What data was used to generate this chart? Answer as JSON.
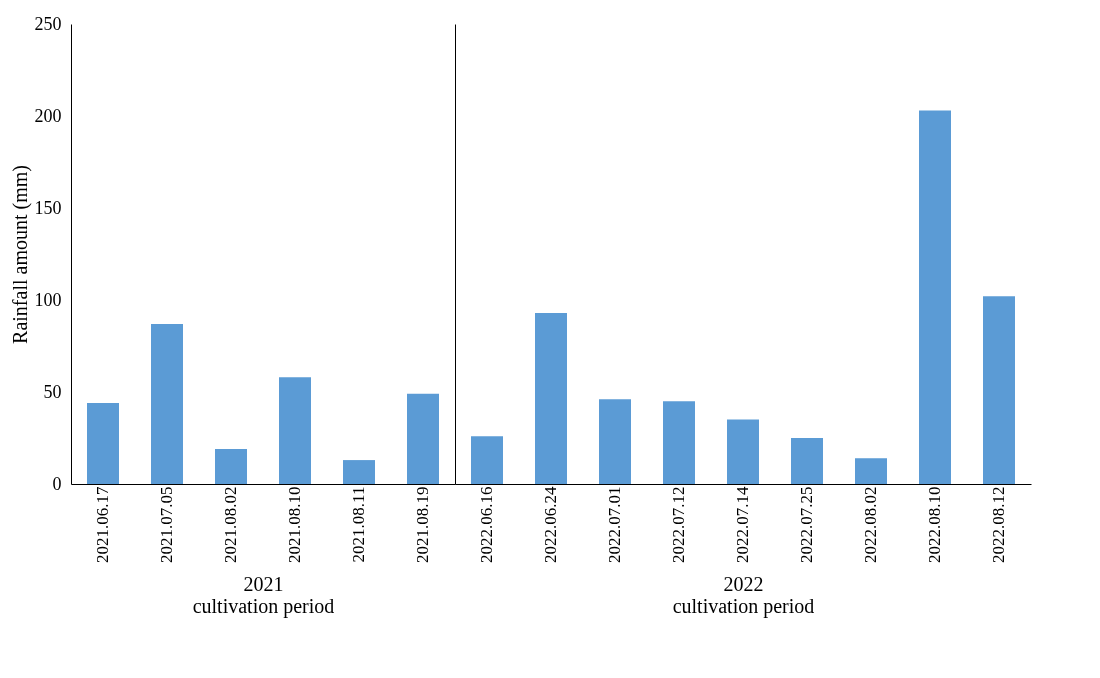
{
  "chart_data": [
    {
      "type": "bar",
      "ylabel": "Rainfall amount (mm)",
      "xlabel": "cultivation period",
      "annotations": [
        "2021"
      ],
      "categories": [
        "2021.06.17",
        "2021.07.05",
        "2021.08.02",
        "2021.08.10",
        "2021.08.11",
        "2021.08.19"
      ],
      "values": [
        44,
        87,
        19,
        58,
        13,
        49
      ],
      "color": "#5b9bd5",
      "ylim": [
        0,
        250
      ],
      "yticks": [
        0,
        50,
        100,
        150,
        200,
        250
      ],
      "grid": false
    },
    {
      "type": "bar",
      "xlabel": "cultivation period",
      "annotations": [
        "2022"
      ],
      "categories": [
        "2022.06.16",
        "2022.06.24",
        "2022.07.01",
        "2022.07.12",
        "2022.07.14",
        "2022.07.25",
        "2022.08.02",
        "2022.08.10",
        "2022.08.12"
      ],
      "values": [
        26,
        93,
        46,
        45,
        35,
        25,
        14,
        203,
        102
      ],
      "color": "#5b9bd5",
      "ylim": [
        0,
        250
      ],
      "yticks": [
        0,
        50,
        100,
        150,
        200,
        250
      ],
      "grid": false,
      "tick_labels": "x"
    }
  ]
}
